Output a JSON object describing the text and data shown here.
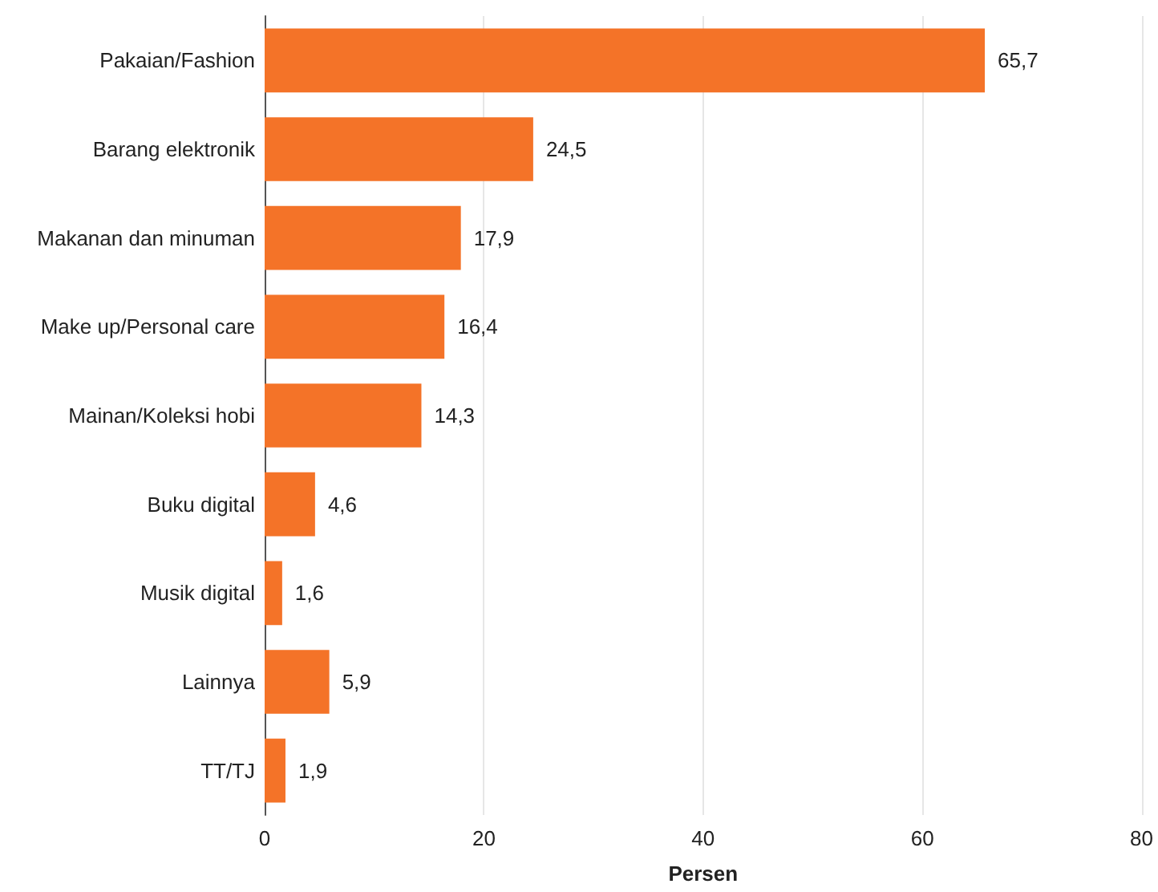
{
  "chart_data": {
    "type": "bar",
    "orientation": "horizontal",
    "xlabel": "Persen",
    "categories": [
      "Pakaian/Fashion",
      "Barang elektronik",
      "Makanan dan minuman",
      "Make up/Personal care",
      "Mainan/Koleksi hobi",
      "Buku digital",
      "Musik digital",
      "Lainnya",
      "TT/TJ"
    ],
    "values": [
      65.7,
      24.5,
      17.9,
      16.4,
      14.3,
      4.6,
      1.6,
      5.9,
      1.9
    ],
    "value_labels": [
      "65,7",
      "24,5",
      "17,9",
      "16,4",
      "14,3",
      "4,6",
      "1,6",
      "5,9",
      "1,9"
    ],
    "color": "#f47328",
    "xlim": [
      0,
      80
    ],
    "xticks": [
      0,
      20,
      40,
      60,
      80
    ],
    "grid": "x"
  }
}
